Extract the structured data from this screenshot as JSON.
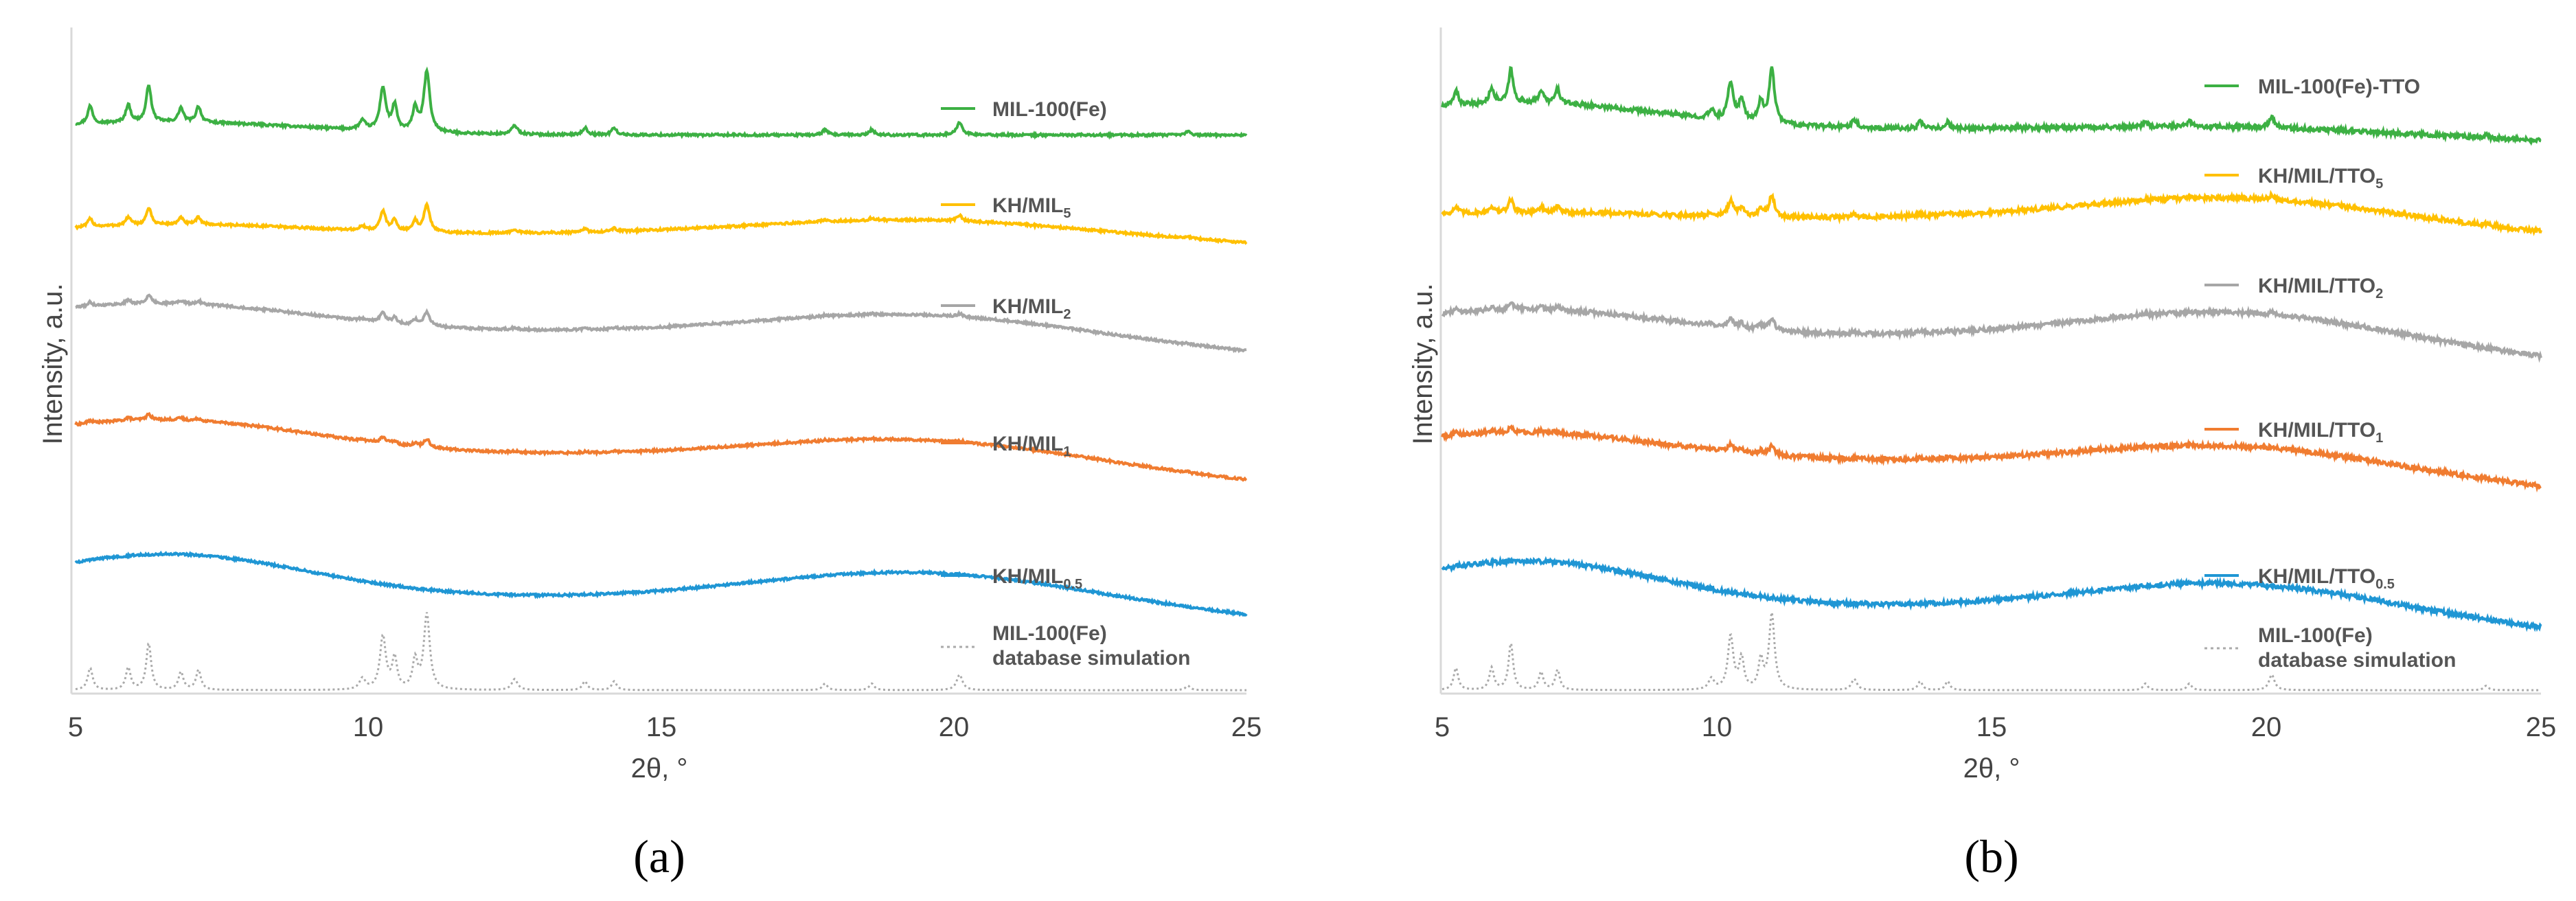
{
  "chart_data": [
    {
      "panel_label": "(a)",
      "type": "line",
      "xlabel": "2θ, °",
      "ylabel": "Intensity, a.u.",
      "xlim": [
        5,
        25
      ],
      "xticks": [
        "5",
        "10",
        "15",
        "20",
        "25"
      ],
      "y_ticks_shown": false,
      "series": [
        {
          "name": "MIL-100(Fe)",
          "name_main": "MIL-100(Fe)",
          "name_sub": "",
          "color": "#3cb043",
          "style": "solid",
          "profile": "sharp",
          "offset": 0.86,
          "bg": [
            0.02,
            0.0,
            0.0,
            0.0
          ],
          "peak_scale": 1.0
        },
        {
          "name": "KH/MIL5",
          "name_main": "KH/MIL",
          "name_sub": "5",
          "color": "#ffc000",
          "style": "solid",
          "profile": "mixed",
          "offset": 0.7,
          "bg": [
            0.02,
            0.02,
            0.025,
            -0.03
          ],
          "peak_scale": 0.45
        },
        {
          "name": "KH/MIL2",
          "name_main": "KH/MIL",
          "name_sub": "2",
          "color": "#a6a6a6",
          "style": "solid",
          "profile": "mixed",
          "offset": 0.56,
          "bg": [
            0.04,
            -0.01,
            0.04,
            -0.03
          ],
          "peak_scale": 0.22
        },
        {
          "name": "KH/MIL1",
          "name_main": "KH/MIL",
          "name_sub": "1",
          "color": "#f07c30",
          "style": "solid",
          "profile": "mixed",
          "offset": 0.37,
          "bg": [
            0.05,
            -0.01,
            0.04,
            -0.04
          ],
          "peak_scale": 0.14
        },
        {
          "name": "KH/MIL0.5",
          "name_main": "KH/MIL",
          "name_sub": "0.5",
          "color": "#1f96d4",
          "style": "solid",
          "profile": "amorphous",
          "offset": 0.14,
          "bg": [
            0.07,
            0.01,
            0.05,
            -0.04
          ],
          "peak_scale": 0.0
        },
        {
          "name": "MIL-100(Fe) database simulation",
          "name_main": "MIL-100(Fe)",
          "name_line2": "database simulation",
          "name_sub": "",
          "color": "#aaaaaa",
          "style": "dotted",
          "profile": "sharp",
          "offset": 0.0,
          "bg": [
            0.0,
            0.0,
            0.0,
            0.0
          ],
          "peak_scale": 1.25
        }
      ]
    },
    {
      "panel_label": "(b)",
      "type": "line",
      "xlabel": "2θ, °",
      "ylabel": "Intensity, a.u.",
      "xlim": [
        5,
        25
      ],
      "xticks": [
        "5",
        "10",
        "15",
        "20",
        "25"
      ],
      "y_ticks_shown": false,
      "series": [
        {
          "name": "MIL-100(Fe)-TTO",
          "name_main": "MIL-100(Fe)-TTO",
          "name_sub": "",
          "color": "#3cb043",
          "style": "solid",
          "profile": "sharp",
          "offset": 0.87,
          "bg": [
            0.04,
            0.0,
            0.01,
            -0.02
          ],
          "peak_scale": 0.9
        },
        {
          "name": "KH/MIL/TTO5",
          "name_main": "KH/MIL/TTO",
          "name_sub": "5",
          "color": "#ffc000",
          "style": "solid",
          "profile": "mixed",
          "offset": 0.73,
          "bg": [
            0.01,
            0.005,
            0.04,
            -0.03
          ],
          "peak_scale": 0.35
        },
        {
          "name": "KH/MIL/TTO2",
          "name_main": "KH/MIL/TTO",
          "name_sub": "2",
          "color": "#a6a6a6",
          "style": "solid",
          "profile": "mixed",
          "offset": 0.55,
          "bg": [
            0.04,
            0.0,
            0.05,
            -0.04
          ],
          "peak_scale": 0.2
        },
        {
          "name": "KH/MIL/TTO1",
          "name_main": "KH/MIL/TTO",
          "name_sub": "1",
          "color": "#f07c30",
          "style": "solid",
          "profile": "mixed",
          "offset": 0.36,
          "bg": [
            0.04,
            -0.01,
            0.04,
            -0.04
          ],
          "peak_scale": 0.15
        },
        {
          "name": "KH/MIL/TTO0.5",
          "name_main": "KH/MIL/TTO",
          "name_sub": "0.5",
          "color": "#1f96d4",
          "style": "solid",
          "profile": "amorphous",
          "offset": 0.13,
          "bg": [
            0.07,
            0.0,
            0.05,
            -0.04
          ],
          "peak_scale": 0.0
        },
        {
          "name": "MIL-100(Fe) database simulation",
          "name_main": "MIL-100(Fe)",
          "name_line2": "database simulation",
          "name_sub": "",
          "color": "#aaaaaa",
          "style": "dotted",
          "profile": "sharp",
          "offset": 0.0,
          "bg": [
            0.0,
            0.0,
            0.0,
            0.0
          ],
          "peak_scale": 1.25
        }
      ]
    }
  ],
  "peaks_2theta": [
    [
      5.25,
      0.05,
      0.5
    ],
    [
      5.9,
      0.05,
      0.5
    ],
    [
      6.25,
      0.05,
      1.05
    ],
    [
      6.8,
      0.05,
      0.4
    ],
    [
      7.1,
      0.05,
      0.45
    ],
    [
      9.9,
      0.06,
      0.25
    ],
    [
      10.25,
      0.06,
      1.2
    ],
    [
      10.45,
      0.05,
      0.7
    ],
    [
      10.8,
      0.05,
      0.65
    ],
    [
      11.0,
      0.06,
      1.7
    ],
    [
      12.5,
      0.06,
      0.25
    ],
    [
      13.7,
      0.05,
      0.2
    ],
    [
      14.2,
      0.05,
      0.2
    ],
    [
      17.8,
      0.05,
      0.15
    ],
    [
      18.6,
      0.05,
      0.15
    ],
    [
      20.1,
      0.06,
      0.35
    ],
    [
      24.0,
      0.05,
      0.1
    ]
  ]
}
